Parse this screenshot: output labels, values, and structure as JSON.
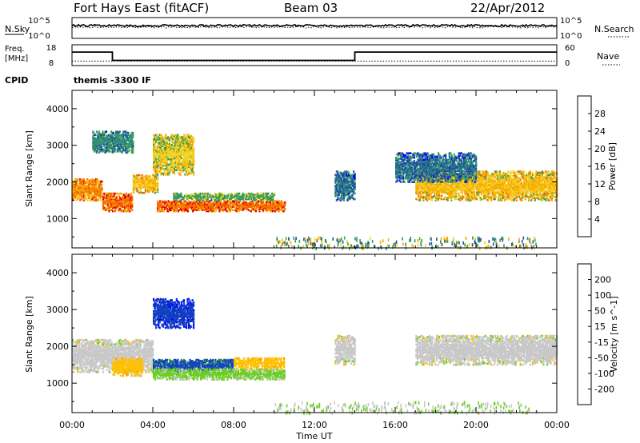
{
  "header": {
    "station": "Fort Hays East (fitACF)",
    "beam": "Beam 03",
    "date": "22/Apr/2012"
  },
  "noise_panel": {
    "left_label": "N.Sky",
    "right_label": "N.Search",
    "left_ticks": [
      "10^5",
      "10^0"
    ],
    "right_ticks": [
      "10^5",
      "10^0"
    ]
  },
  "freq_panel": {
    "left_label_line1": "Freq.",
    "left_label_line2": "[MHz]",
    "right_label": "Nave",
    "left_ticks": [
      "18",
      "8"
    ],
    "right_ticks": [
      "60",
      "0"
    ],
    "freq_steps": [
      {
        "start_h": 0,
        "end_h": 2,
        "freq_mhz": 14.5
      },
      {
        "start_h": 2,
        "end_h": 14,
        "freq_mhz": 10.5
      },
      {
        "start_h": 14,
        "end_h": 24,
        "freq_mhz": 14.5
      }
    ],
    "nave_level": 13
  },
  "cpid": {
    "label": "CPID",
    "value": "themis -3300 IF"
  },
  "colors": {
    "power": [
      "#0000ff",
      "#1f4ea0",
      "#2f8f7a",
      "#3ca24a",
      "#f2d020",
      "#f7a800",
      "#f46a00",
      "#e00000"
    ],
    "velocity": [
      "#ff0000",
      "#ff5a00",
      "#ff9900",
      "#ffc000",
      "#c8c8c8",
      "#6ad020",
      "#2e9c3a",
      "#1040c0",
      "#0000ff"
    ]
  },
  "chart_data": [
    {
      "type": "heatmap",
      "name": "power-panel",
      "xlabel": "Time UT",
      "ylabel": "Slant Range [km]",
      "xlim": [
        0,
        24
      ],
      "ylim": [
        200,
        4500
      ],
      "x_ticks": [
        "00:00",
        "04:00",
        "08:00",
        "12:00",
        "16:00",
        "20:00",
        "00:00"
      ],
      "y_ticks": [
        1000,
        2000,
        3000,
        4000
      ],
      "colorbar": {
        "label": "Power [dB]",
        "ticks": [
          "28",
          "24",
          "20",
          "16",
          "12",
          "8",
          "4"
        ],
        "range": [
          0,
          32
        ]
      },
      "regions": [
        {
          "t0": 0.0,
          "t1": 1.5,
          "r0": 1500,
          "r1": 2100,
          "level": 24
        },
        {
          "t0": 1.5,
          "t1": 3.0,
          "r0": 1200,
          "r1": 1700,
          "level": 26
        },
        {
          "t0": 3.0,
          "t1": 4.2,
          "r0": 1700,
          "r1": 2200,
          "level": 20
        },
        {
          "t0": 4.2,
          "t1": 10.5,
          "r0": 1200,
          "r1": 1500,
          "level": 26
        },
        {
          "t0": 5.0,
          "t1": 10.0,
          "r0": 1500,
          "r1": 1700,
          "level": 14
        },
        {
          "t0": 1.0,
          "t1": 3.0,
          "r0": 2800,
          "r1": 3400,
          "level": 10
        },
        {
          "t0": 4.0,
          "t1": 6.0,
          "r0": 2200,
          "r1": 3300,
          "level": 18
        },
        {
          "t0": 13.0,
          "t1": 14.0,
          "r0": 1500,
          "r1": 2300,
          "level": 8
        },
        {
          "t0": 17.0,
          "t1": 24.0,
          "r0": 1500,
          "r1": 2300,
          "level": 20
        },
        {
          "t0": 16.0,
          "t1": 20.0,
          "r0": 2000,
          "r1": 2800,
          "level": 8
        }
      ]
    },
    {
      "type": "heatmap",
      "name": "velocity-panel",
      "xlabel": "Time UT",
      "ylabel": "Slant Range [km]",
      "xlim": [
        0,
        24
      ],
      "ylim": [
        200,
        4500
      ],
      "x_ticks": [
        "00:00",
        "04:00",
        "08:00",
        "12:00",
        "16:00",
        "20:00",
        "00:00"
      ],
      "y_ticks": [
        1000,
        2000,
        3000,
        4000
      ],
      "colorbar": {
        "label": "Velocity [m s^-1]",
        "ticks": [
          "200",
          "100",
          "50",
          "15",
          "-15",
          "-50",
          "-100",
          "-200"
        ],
        "range": [
          -250,
          250
        ]
      },
      "regions": [
        {
          "t0": 0.0,
          "t1": 4.0,
          "r0": 1300,
          "r1": 2200,
          "level": 0
        },
        {
          "t0": 2.0,
          "t1": 3.5,
          "r0": 1200,
          "r1": 1700,
          "level": -60
        },
        {
          "t0": 4.0,
          "t1": 8.0,
          "r0": 1300,
          "r1": 1650,
          "level": 150
        },
        {
          "t0": 4.0,
          "t1": 10.5,
          "r0": 1100,
          "r1": 1400,
          "level": 40
        },
        {
          "t0": 8.0,
          "t1": 10.5,
          "r0": 1400,
          "r1": 1700,
          "level": -60
        },
        {
          "t0": 4.0,
          "t1": 6.0,
          "r0": 2500,
          "r1": 3300,
          "level": 180
        },
        {
          "t0": 13.0,
          "t1": 14.0,
          "r0": 1500,
          "r1": 2300,
          "level": 0
        },
        {
          "t0": 17.0,
          "t1": 24.0,
          "r0": 1500,
          "r1": 2300,
          "level": 0
        }
      ]
    }
  ]
}
